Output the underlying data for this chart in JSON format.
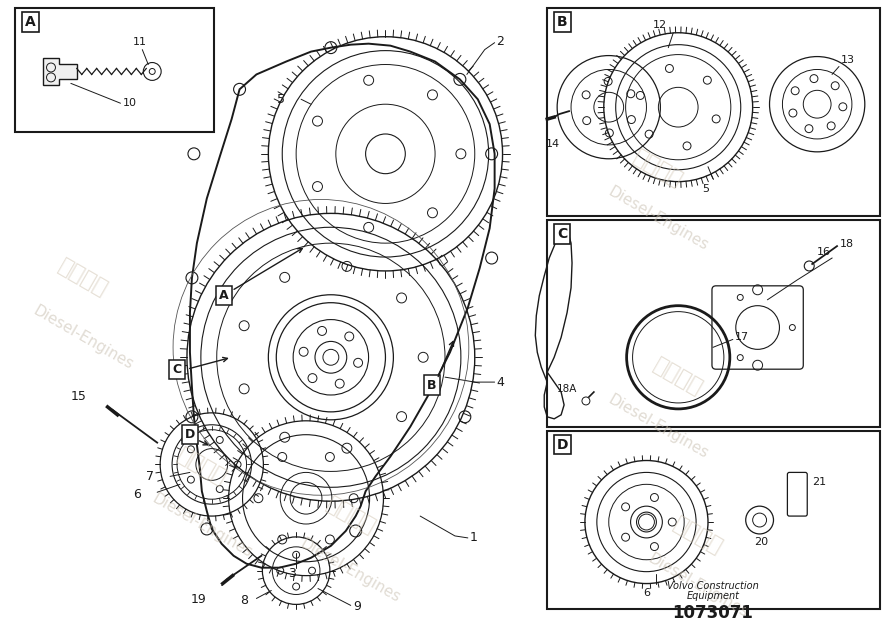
{
  "bg_color": "#ffffff",
  "line_color": "#1a1a1a",
  "wm_color1": "#d4c9b8",
  "wm_color2": "#c8bfb0",
  "part_number": "1073071",
  "company_line1": "Volvo Construction",
  "company_line2": "Equipment"
}
